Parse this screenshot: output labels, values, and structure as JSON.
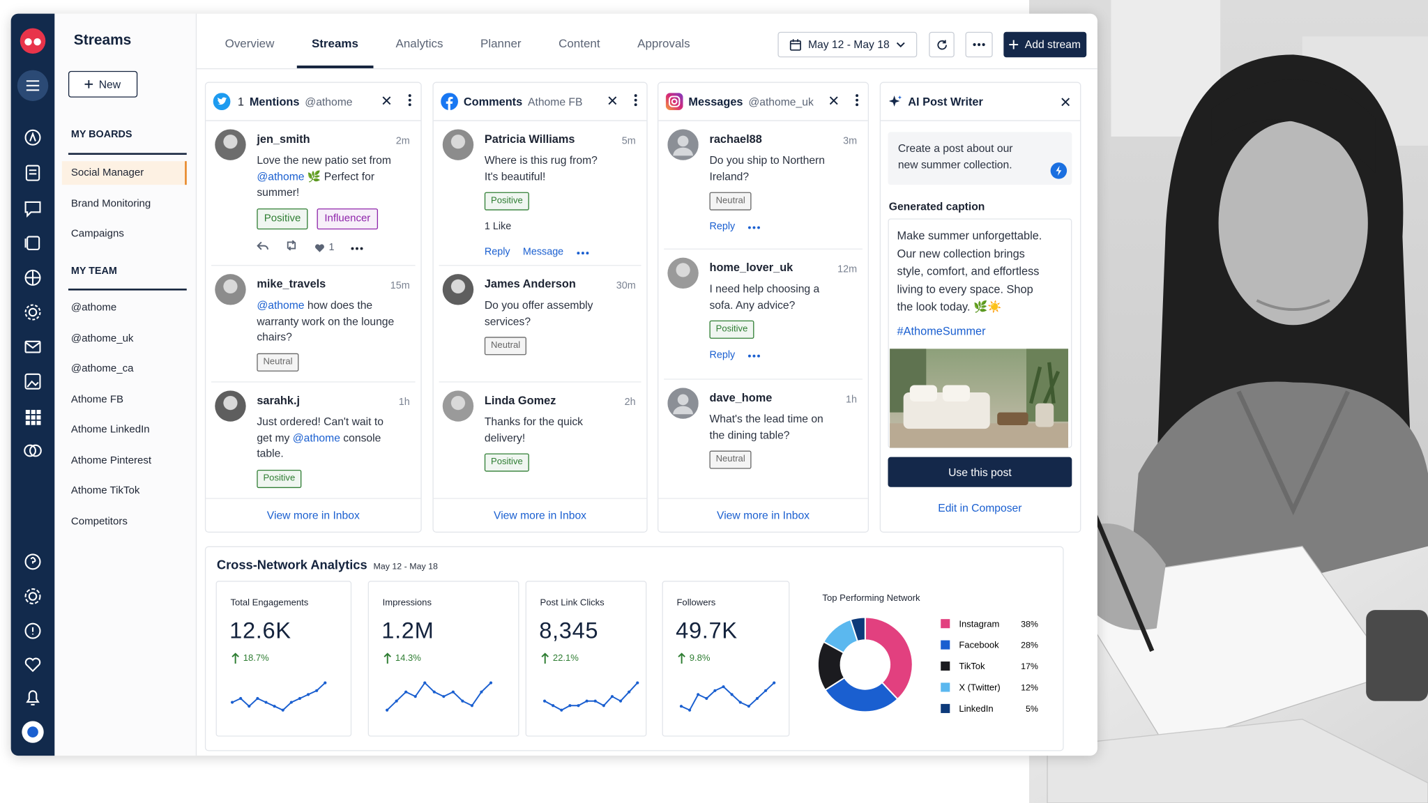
{
  "sidebar": {
    "title": "Streams",
    "new_button": "New",
    "boards_heading": "MY BOARDS",
    "boards": [
      "Social Manager",
      "Brand Monitoring",
      "Campaigns"
    ],
    "team_heading": "MY TEAM",
    "team": [
      "@athome",
      "@athome_uk",
      "@athome_ca",
      "Athome FB",
      "Athome LinkedIn",
      "Athome Pinterest",
      "Athome TikTok",
      "Competitors"
    ]
  },
  "tabs": [
    "Overview",
    "Streams",
    "Analytics",
    "Planner",
    "Content",
    "Approvals"
  ],
  "toolbar": {
    "date_range": "May 12 - May 18",
    "add_stream": "Add stream"
  },
  "streams": [
    {
      "count": "1",
      "title": "Mentions",
      "account": "@athome",
      "items": [
        {
          "user": "jen_smith",
          "time": "2m",
          "body": {
            "before": "Love the new patio set from ",
            "mention": "@athome",
            "after": " 🌿 Perfect for summer!"
          },
          "tags": [
            {
              "label": "Positive",
              "color": "#2e7d32"
            },
            {
              "label": "Influencer",
              "color": "#8e24aa"
            }
          ],
          "likes": "1"
        },
        {
          "user": "mike_travels",
          "time": "15m",
          "body": {
            "mention": "@athome",
            "after": " how does the warranty work on the lounge chairs?"
          },
          "tags": [
            {
              "label": "Neutral",
              "color": "#666666"
            }
          ]
        },
        {
          "user": "sarahk.j",
          "time": "1h",
          "body": {
            "before": "Just ordered! Can't wait to get my ",
            "mention": "@athome",
            "after": " console table."
          },
          "tags": [
            {
              "label": "Positive",
              "color": "#2e7d32"
            }
          ]
        }
      ],
      "footer": "View more in Inbox"
    },
    {
      "title": "Comments",
      "account": "Athome FB",
      "items": [
        {
          "user": "Patricia Williams",
          "time": "5m",
          "body": {
            "before": "Where is this rug from? It's beautiful!"
          },
          "tags": [
            {
              "label": "Positive",
              "color": "#2e7d32"
            }
          ],
          "like_count": "1 Like",
          "actions": [
            "Reply",
            "Message"
          ]
        },
        {
          "user": "James Anderson",
          "time": "30m",
          "body": {
            "before": "Do you offer assembly services?"
          },
          "tags": [
            {
              "label": "Neutral",
              "color": "#666666"
            }
          ]
        },
        {
          "user": "Linda Gomez",
          "time": "2h",
          "body": {
            "before": "Thanks for the quick delivery!"
          },
          "tags": [
            {
              "label": "Positive",
              "color": "#2e7d32"
            }
          ]
        }
      ],
      "footer": "View more in Inbox"
    },
    {
      "title": "Messages",
      "account": "@athome_uk",
      "items": [
        {
          "user": "rachael88",
          "time": "3m",
          "body": {
            "before": "Do you ship to Northern Ireland?"
          },
          "tags": [
            {
              "label": "Neutral",
              "color": "#666666"
            }
          ],
          "actions": [
            "Reply"
          ]
        },
        {
          "user": "home_lover_uk",
          "time": "12m",
          "body": {
            "before": "I need help choosing a sofa. Any advice?"
          },
          "tags": [
            {
              "label": "Positive",
              "color": "#2e7d32"
            }
          ],
          "actions": [
            "Reply"
          ]
        },
        {
          "user": "dave_home",
          "time": "1h",
          "body": {
            "before": "What's the lead time on the dining table?"
          },
          "tags": [
            {
              "label": "Neutral",
              "color": "#666666"
            }
          ]
        }
      ],
      "footer": "View more in Inbox"
    }
  ],
  "ai_writer": {
    "title": "AI Post Writer",
    "prompt": "Create a post about our new summer collection.",
    "caption_heading": "Generated caption",
    "caption": "Make summer unforgettable. Our new collection brings style, comfort, and effortless living to every space. Shop the look today. 🌿☀️",
    "hashtag": "#AthomeSummer",
    "primary_button": "Use this post",
    "secondary_link": "Edit in Composer"
  },
  "analytics": {
    "title": "Cross-Network Analytics",
    "date_range": "May 12 - May 18",
    "kpis": [
      {
        "label": "Total Engagements",
        "value": "12.6K",
        "change": "18.7%",
        "trend": [
          3,
          4,
          2,
          4,
          3,
          2,
          1,
          3,
          4,
          5,
          6,
          8
        ]
      },
      {
        "label": "Impressions",
        "value": "1.2M",
        "change": "14.3%",
        "trend": [
          2,
          4,
          6,
          5,
          8,
          6,
          5,
          6,
          4,
          3,
          6,
          8
        ]
      },
      {
        "label": "Post Link Clicks",
        "value": "8,345",
        "change": "22.1%",
        "trend": [
          3,
          2,
          1,
          2,
          2,
          3,
          3,
          2,
          4,
          3,
          5,
          7
        ]
      },
      {
        "label": "Followers",
        "value": "49.7K",
        "change": "9.8%",
        "trend": [
          2,
          1,
          5,
          4,
          6,
          7,
          5,
          3,
          2,
          4,
          6,
          8
        ]
      }
    ]
  },
  "chart_data": {
    "type": "pie",
    "title": "Top Performing Network",
    "categories": [
      "Instagram",
      "Facebook",
      "TikTok",
      "X (Twitter)",
      "LinkedIn"
    ],
    "values": [
      38,
      28,
      17,
      12,
      5
    ],
    "value_labels": [
      "38%",
      "28%",
      "17%",
      "12%",
      "5%"
    ],
    "colors": [
      "#e2407f",
      "#1a5fd0",
      "#1b1b1f",
      "#5bb8ef",
      "#0d3a7a"
    ]
  }
}
